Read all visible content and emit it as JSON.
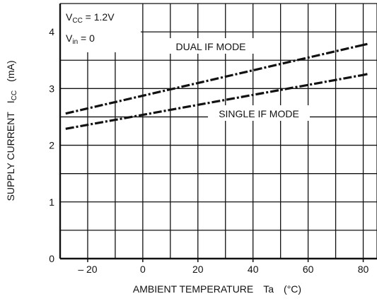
{
  "chart_data": {
    "type": "line",
    "title": "",
    "xlabel": "AMBIENT TEMPERATURE",
    "xlabel_symbol": "Ta",
    "xlabel_unit": "(°C)",
    "ylabel": "SUPPLY CURRENT",
    "ylabel_symbol_main": "I",
    "ylabel_symbol_sub": "CC",
    "ylabel_unit": "(mA)",
    "xlim": [
      -30,
      85
    ],
    "ylim": [
      0,
      4.5
    ],
    "x_tick_values": [
      -20,
      0,
      20,
      40,
      60,
      80
    ],
    "x_tick_labels": [
      "– 20",
      "0",
      "20",
      "40",
      "60",
      "80"
    ],
    "y_tick_values": [
      0,
      1,
      2,
      3,
      4
    ],
    "y_tick_labels": [
      "0",
      "1",
      "2",
      "3",
      "4"
    ],
    "x_grid": [
      -30,
      -20,
      -10,
      0,
      10,
      20,
      30,
      40,
      50,
      60,
      70,
      80,
      85
    ],
    "y_grid": [
      0.5,
      1,
      1.5,
      2,
      2.5,
      3,
      3.5,
      4
    ],
    "grid": true,
    "series": [
      {
        "name": "DUAL IF MODE",
        "x": [
          -28,
          80
        ],
        "y": [
          2.56,
          3.77
        ],
        "extrapolated_x": [
          80,
          82
        ],
        "extrapolated_y": [
          3.77,
          3.79
        ],
        "color": "#111111"
      },
      {
        "name": "SINGLE IF MODE",
        "x": [
          -28,
          80
        ],
        "y": [
          2.29,
          3.24
        ],
        "extrapolated_x": [
          80,
          82
        ],
        "extrapolated_y": [
          3.24,
          3.26
        ],
        "color": "#111111"
      }
    ],
    "annotations": [
      {
        "id": "vcc",
        "main": "V",
        "sub": "CC",
        "rest": " = 1.2V"
      },
      {
        "id": "vin",
        "main": "V",
        "sub": "in",
        "rest": " = 0"
      }
    ]
  }
}
